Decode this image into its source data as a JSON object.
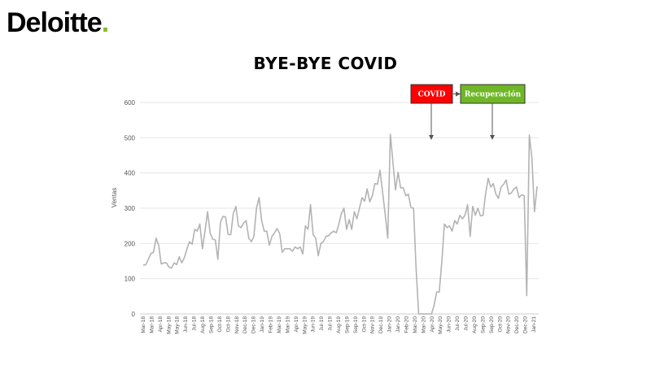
{
  "brand": {
    "name": "Deloitte",
    "dot": ".",
    "dot_color": "#86bc25"
  },
  "chart_data": {
    "type": "line",
    "title": "BYE-BYE COVID",
    "ylabel": "Ventas",
    "xlabel": "",
    "ylim": [
      0,
      600
    ],
    "yticks": [
      0,
      100,
      200,
      300,
      400,
      500,
      600
    ],
    "grid": "horizontal",
    "line_color": "#b3b3b3",
    "x_tick_labels": [
      "Mar-18",
      "Mar-18",
      "Apr-18",
      "May-18",
      "May-18",
      "Jun-18",
      "Jul-18",
      "Aug-18",
      "Sep-18",
      "Oct-18",
      "Oct-18",
      "Nov-18",
      "Dec-18",
      "Dec-18",
      "Jan-19",
      "Feb-19",
      "Mar-19",
      "Mar-19",
      "Apr-19",
      "May-19",
      "Jun-19",
      "Jul-19",
      "Jul-19",
      "Aug-19",
      "Sep-19",
      "Sep-19",
      "Oct-19",
      "Nov-19",
      "Dec-19",
      "Jan-20",
      "Jan-20",
      "Feb-20",
      "Mar-20",
      "Mar-20",
      "Apr-20",
      "May-20",
      "Jun-20",
      "Jul-20",
      "Jul-20",
      "Aug-20",
      "Sep-20",
      "Sep-20",
      "Oct-20",
      "Nov-20",
      "Dec-20",
      "Dec-20",
      "Jan-21"
    ],
    "values": [
      138,
      140,
      155,
      172,
      175,
      215,
      195,
      142,
      145,
      145,
      133,
      130,
      145,
      140,
      162,
      145,
      160,
      185,
      205,
      198,
      240,
      235,
      255,
      185,
      235,
      290,
      230,
      212,
      210,
      155,
      260,
      277,
      275,
      225,
      225,
      285,
      305,
      250,
      245,
      258,
      265,
      215,
      205,
      220,
      300,
      330,
      265,
      235,
      235,
      195,
      220,
      230,
      242,
      228,
      175,
      185,
      185,
      185,
      178,
      190,
      185,
      190,
      170,
      250,
      240,
      310,
      225,
      215,
      165,
      200,
      205,
      220,
      222,
      230,
      235,
      230,
      255,
      285,
      300,
      240,
      268,
      240,
      290,
      270,
      300,
      330,
      320,
      355,
      318,
      335,
      370,
      368,
      408,
      345,
      282,
      215,
      510,
      432,
      352,
      402,
      358,
      358,
      335,
      340,
      302,
      300,
      130,
      0,
      0,
      0,
      0,
      0,
      0,
      25,
      62,
      62,
      150,
      255,
      245,
      250,
      235,
      265,
      255,
      280,
      270,
      280,
      310,
      220,
      305,
      280,
      300,
      278,
      280,
      340,
      385,
      360,
      370,
      340,
      328,
      360,
      368,
      380,
      340,
      343,
      355,
      360,
      330,
      338,
      335,
      52,
      508,
      440,
      290,
      362
    ],
    "annotations": [
      {
        "label": "COVID",
        "color": "#ff0000"
      },
      {
        "label": "Recuperación",
        "color": "#6fb726"
      }
    ]
  }
}
